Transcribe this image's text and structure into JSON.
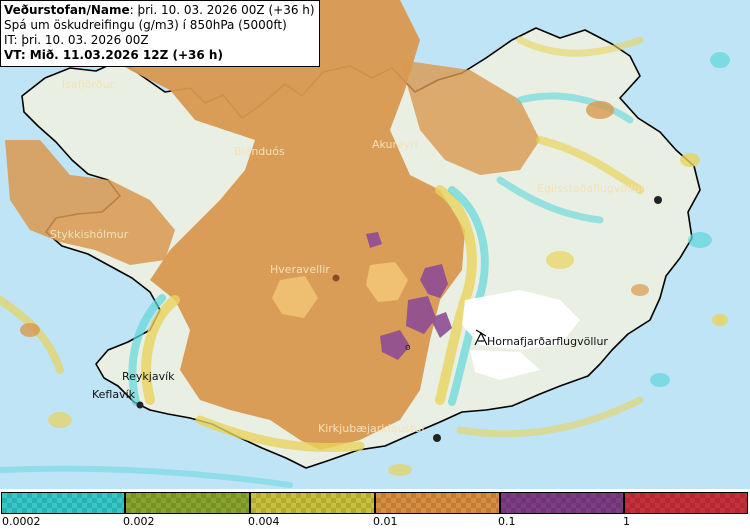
{
  "header": {
    "line1_bold": "Veðurstofan/Name",
    "line1_rest": ": þri. 10. 03. 2026 00Z (+36 h)",
    "line2": "Spá um öskudreifingu (g/m3) í 850hPa (5000ft)",
    "line3": "IT: þri. 10. 03. 2026 00Z",
    "line4": "VT: Mið. 11.03.2026 12Z (+36 h)"
  },
  "places": {
    "isafjordur": "Ísafjörður",
    "blonduos": "Blönduós",
    "akureyri": "Akureyri",
    "egilsstadir": "Egilsstaðaflugvöllur",
    "stykkisholmur": "Stykkishólmur",
    "hveravellir": "Hveravellir",
    "hornafjordur": "Hornafjarðarflugvöllur",
    "reykjavik": "Reykjavík",
    "keflavik": "Keflavík",
    "kirkjubaejarklaustur": "Kirkjubæjarklaustur"
  },
  "legend": {
    "colors": [
      "#35c8c8",
      "#86a52c",
      "#c9c13a",
      "#d88e3e",
      "#7e3c85",
      "#c7303a"
    ],
    "ticks": [
      "0.0002",
      "0.002",
      "0.004",
      "0.01",
      "0.1",
      "1"
    ]
  },
  "colors": {
    "sea": "#bfe4f6",
    "land": "#e9f0e3",
    "ash_orange": "#d9984f",
    "ash_purple": "#8e4d95",
    "ash_yellow": "#e8d35c",
    "ash_cyan": "#5fd6dc"
  }
}
